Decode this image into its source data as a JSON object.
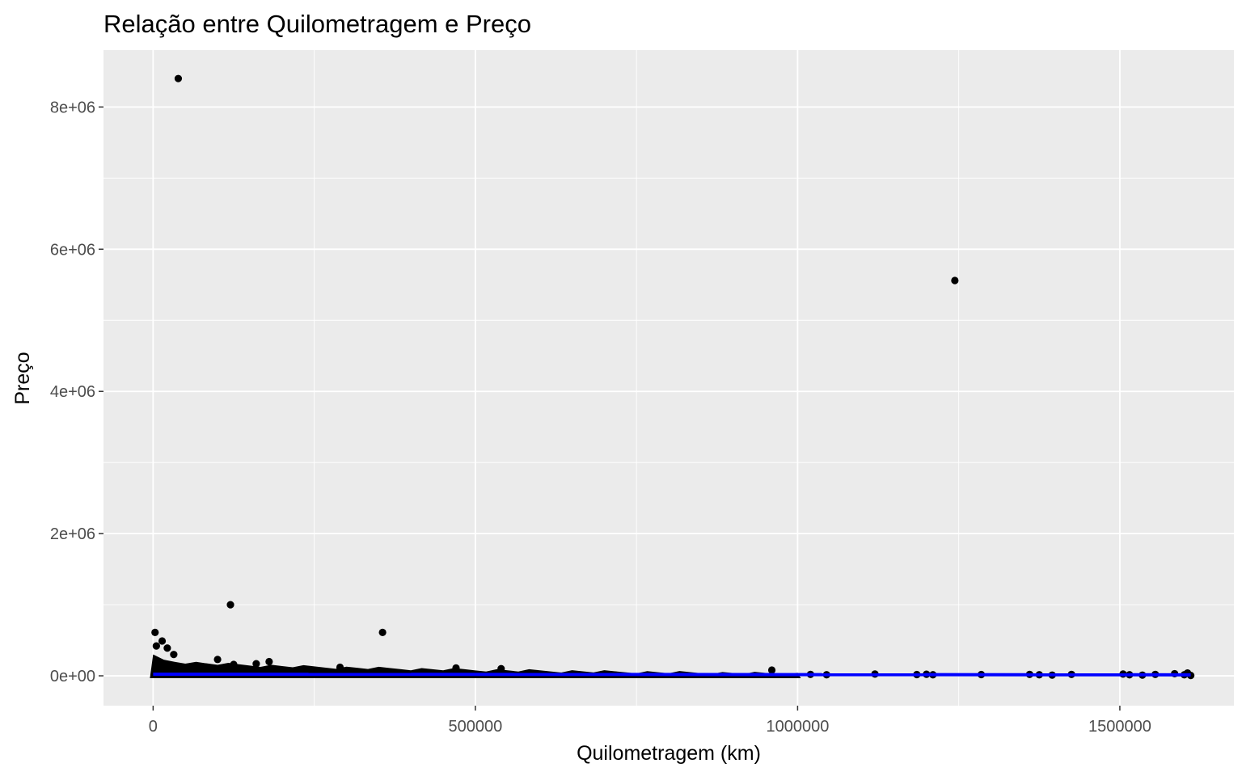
{
  "chart_data": {
    "type": "scatter",
    "title": "Relação entre Quilometragem e Preço",
    "xlabel": "Quilometragem (km)",
    "ylabel": "Preço",
    "xlim": [
      -77000,
      1677000
    ],
    "ylim": [
      -420000,
      8800000
    ],
    "x_ticks": [
      0,
      500000,
      1000000,
      1500000
    ],
    "x_tick_labels": [
      "0",
      "500000",
      "1000000",
      "1500000"
    ],
    "y_ticks": [
      0,
      2000000,
      4000000,
      6000000,
      8000000
    ],
    "y_tick_labels": [
      "0e+00",
      "2e+06",
      "4e+06",
      "6e+06",
      "8e+06"
    ],
    "grid": true,
    "panel_background": "#ebebeb",
    "grid_color": "#ffffff",
    "point_color": "#000000",
    "trend_color": "#0000ff",
    "outliers": [
      {
        "x": 39000,
        "y": 8400000
      },
      {
        "x": 1244000,
        "y": 5560000
      },
      {
        "x": 120000,
        "y": 1000000
      },
      {
        "x": 356000,
        "y": 610000
      },
      {
        "x": 3000,
        "y": 610000
      },
      {
        "x": 14000,
        "y": 490000
      },
      {
        "x": 22000,
        "y": 390000
      },
      {
        "x": 32000,
        "y": 300000
      },
      {
        "x": 5000,
        "y": 420000
      },
      {
        "x": 100000,
        "y": 230000
      },
      {
        "x": 180000,
        "y": 200000
      },
      {
        "x": 160000,
        "y": 170000
      },
      {
        "x": 125000,
        "y": 160000
      },
      {
        "x": 290000,
        "y": 120000
      },
      {
        "x": 470000,
        "y": 110000
      },
      {
        "x": 540000,
        "y": 100000
      },
      {
        "x": 960000,
        "y": 80000
      }
    ],
    "high_km_points": [
      {
        "x": 1020000,
        "y": 20000
      },
      {
        "x": 1045000,
        "y": 15000
      },
      {
        "x": 1120000,
        "y": 25000
      },
      {
        "x": 1185000,
        "y": 18000
      },
      {
        "x": 1200000,
        "y": 22000
      },
      {
        "x": 1210000,
        "y": 15000
      },
      {
        "x": 1285000,
        "y": 18000
      },
      {
        "x": 1360000,
        "y": 20000
      },
      {
        "x": 1375000,
        "y": 15000
      },
      {
        "x": 1395000,
        "y": 10000
      },
      {
        "x": 1425000,
        "y": 20000
      },
      {
        "x": 1505000,
        "y": 25000
      },
      {
        "x": 1515000,
        "y": 15000
      },
      {
        "x": 1535000,
        "y": 10000
      },
      {
        "x": 1555000,
        "y": 20000
      },
      {
        "x": 1585000,
        "y": 30000
      },
      {
        "x": 1600000,
        "y": 15000
      },
      {
        "x": 1605000,
        "y": 40000
      },
      {
        "x": 1610000,
        "y": 5000
      }
    ],
    "dense_band": {
      "x_range": [
        0,
        1000000
      ],
      "y_start": 300000,
      "y_end": 50000
    },
    "trend_line": {
      "x": [
        0,
        1610000
      ],
      "y": [
        22000,
        14000
      ]
    }
  }
}
